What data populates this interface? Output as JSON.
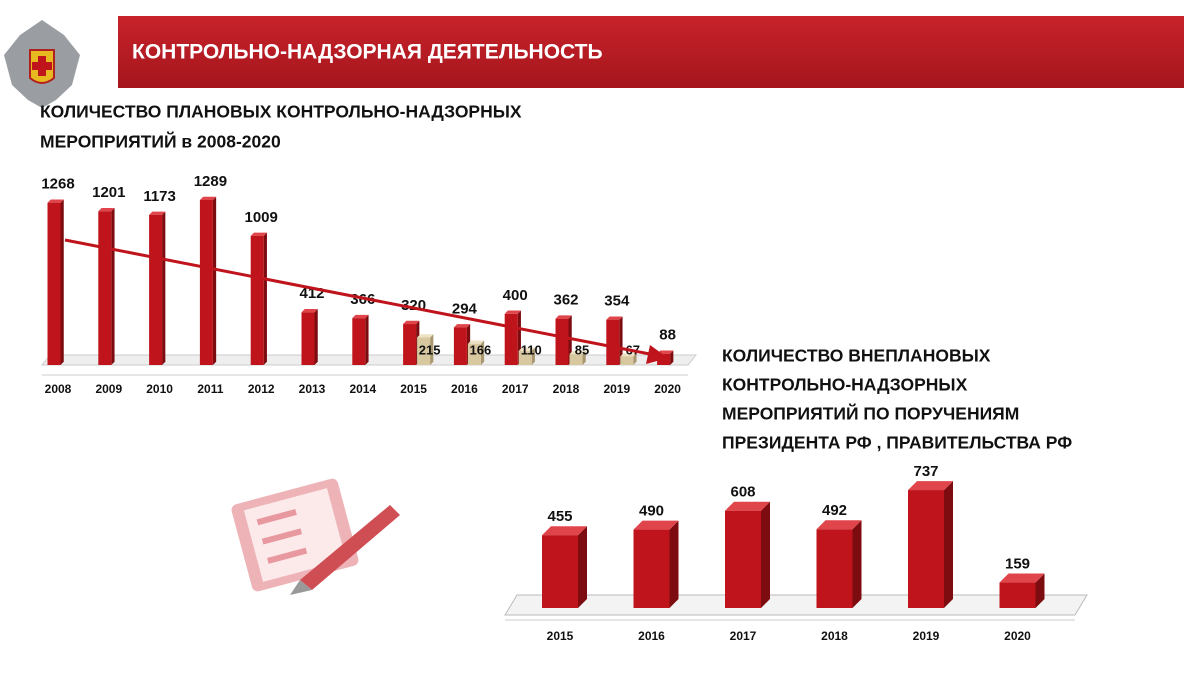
{
  "header": {
    "title": "КОНТРОЛЬНО-НАДЗОРНАЯ ДЕЯТЕЛЬНОСТЬ"
  },
  "chart_data": [
    {
      "type": "bar",
      "title": [
        "КОЛИЧЕСТВО  ПЛАНОВЫХ КОНТРОЛЬНО-НАДЗОРНЫХ",
        "МЕРОПРИЯТИЙ в 2008-2020"
      ],
      "categories": [
        "2008",
        "2009",
        "2010",
        "2011",
        "2012",
        "2013",
        "2014",
        "2015",
        "2016",
        "2017",
        "2018",
        "2019",
        "2020"
      ],
      "series": [
        {
          "color": "#c0141c",
          "values": [
            1268,
            1201,
            1173,
            1289,
            1009,
            412,
            366,
            320,
            294,
            400,
            362,
            354,
            88
          ]
        },
        {
          "color": "#d8c8a0",
          "values": [
            null,
            null,
            null,
            null,
            null,
            null,
            null,
            215,
            166,
            110,
            85,
            67,
            null
          ]
        }
      ]
    },
    {
      "type": "bar",
      "title": [
        "КОЛИЧЕСТВО  ВНЕПЛАНОВЫХ",
        "КОНТРОЛЬНО-НАДЗОРНЫХ",
        "МЕРОПРИЯТИЙ ПО ПОРУЧЕНИЯМ",
        "ПРЕЗИДЕНТА РФ , ПРАВИТЕЛЬСТВА РФ"
      ],
      "categories": [
        "2015",
        "2016",
        "2017",
        "2018",
        "2019",
        "2020"
      ],
      "series": [
        {
          "color": "#c0141c",
          "values": [
            455,
            490,
            608,
            492,
            737,
            159
          ]
        }
      ]
    }
  ]
}
